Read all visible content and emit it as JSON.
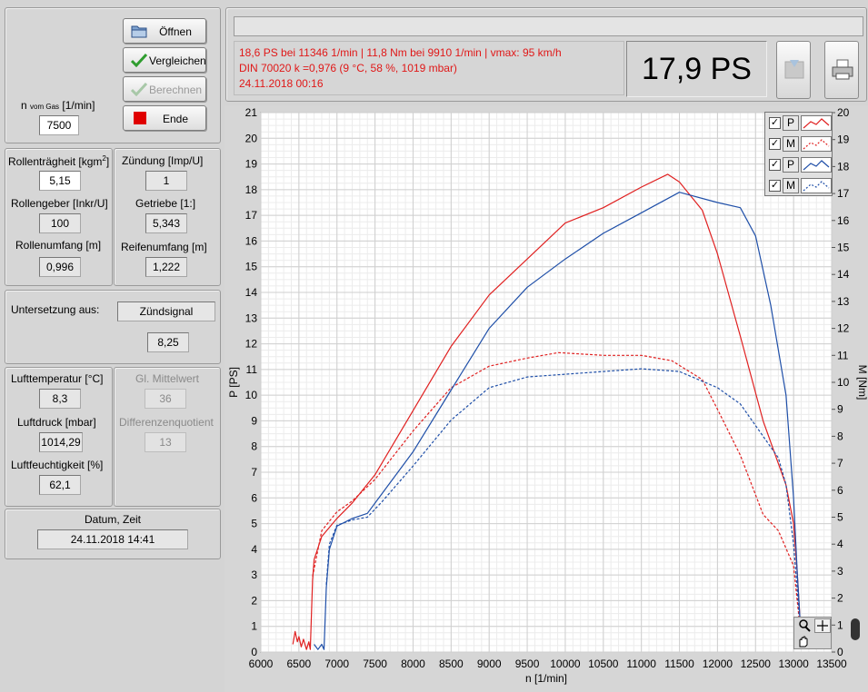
{
  "buttons": {
    "open": "Öffnen",
    "compare": "Vergleichen",
    "calculate": "Berechnen",
    "end": "Ende"
  },
  "rpm_from_gas": {
    "label_prefix": "n",
    "label_sub": "vom Gas",
    "label_suffix": "[1/min]",
    "value": "7500"
  },
  "params": {
    "roller_inertia_label": "Rollenträgheit [kgm",
    "roller_inertia_sup": "2",
    "roller_inertia_value": "5,15",
    "roller_encoder_label": "Rollengeber [Inkr/U]",
    "roller_encoder_value": "100",
    "roller_circumference_label": "Rollenumfang [m]",
    "roller_circumference_value": "0,996",
    "ignition_label": "Zündung [Imp/U]",
    "ignition_value": "1",
    "gearbox_label": "Getriebe [1:]",
    "gearbox_value": "5,343",
    "tire_circumference_label": "Reifenumfang [m]",
    "tire_circumference_value": "1,222"
  },
  "reduction": {
    "label": "Untersetzung aus:",
    "source": "Zündsignal",
    "value": "8,25"
  },
  "environment": {
    "air_temp_label": "Lufttemperatur [°C]",
    "air_temp_value": "8,3",
    "air_pressure_label": "Luftdruck [mbar]",
    "air_pressure_value": "1014,29",
    "humidity_label": "Luftfeuchtigkeit [%]",
    "humidity_value": "62,1",
    "moving_avg_label": "Gl. Mittelwert",
    "moving_avg_value": "36",
    "diff_quotient_label": "Differenzenquotient",
    "diff_quotient_value": "13"
  },
  "datetime": {
    "label": "Datum, Zeit",
    "value": "24.11.2018 14:41"
  },
  "results": {
    "line1": "18,6 PS bei 11346 1/min   |   11,8 Nm bei 9910 1/min   |   vmax: 95 km/h",
    "line2": "DIN 70020 k =0,976 (9 °C, 58 %, 1019 mbar)",
    "line3": "24.11.2018 00:16",
    "big_value": "17,9 PS",
    "text_color": "#e01818"
  },
  "legend": [
    {
      "checked": "✓",
      "letter": "P",
      "color": "#e02020",
      "dashed": false
    },
    {
      "checked": "✓",
      "letter": "M",
      "color": "#e02020",
      "dashed": true
    },
    {
      "checked": "✓",
      "letter": "P",
      "color": "#1f4fa8",
      "dashed": false
    },
    {
      "checked": "✓",
      "letter": "M",
      "color": "#1f4fa8",
      "dashed": true
    }
  ],
  "icons": {
    "open": "folder-icon",
    "compare": "checkmark-icon",
    "calculate": "checkmark-icon",
    "end": "stop-square-icon",
    "save": "save-disk-icon",
    "print": "printer-icon",
    "zoom": "zoom-icon",
    "pan": "hand-icon",
    "cursor": "crosshair-icon"
  },
  "chart_data": {
    "type": "line",
    "xlabel": "n [1/min]",
    "ylabel": "P [PS]",
    "y2label": "M [Nm]",
    "xlim": [
      6000,
      13500
    ],
    "ylim": [
      0,
      21
    ],
    "y2lim": [
      0,
      20
    ],
    "xticks": [
      6000,
      6500,
      7000,
      7500,
      8000,
      8500,
      9000,
      9500,
      10000,
      10500,
      11000,
      11500,
      12000,
      12500,
      13000,
      13500
    ],
    "yticks": [
      0,
      1,
      2,
      3,
      4,
      5,
      6,
      7,
      8,
      9,
      10,
      11,
      12,
      13,
      14,
      15,
      16,
      17,
      18,
      19,
      20,
      21
    ],
    "y2ticks": [
      0,
      1,
      2,
      3,
      4,
      5,
      6,
      7,
      8,
      9,
      10,
      11,
      12,
      13,
      14,
      15,
      16,
      17,
      18,
      19,
      20
    ],
    "grid": true,
    "legend_position": "top-right",
    "series": [
      {
        "axis": "P",
        "color": "#e02020",
        "dashed": false,
        "points": [
          [
            6420,
            0.3
          ],
          [
            6450,
            0.8
          ],
          [
            6480,
            0.4
          ],
          [
            6500,
            0.6
          ],
          [
            6530,
            0.2
          ],
          [
            6560,
            0.5
          ],
          [
            6600,
            0.1
          ],
          [
            6630,
            0.4
          ],
          [
            6650,
            0.1
          ],
          [
            6680,
            2.8
          ],
          [
            6700,
            3.6
          ],
          [
            6800,
            4.5
          ],
          [
            7000,
            5.2
          ],
          [
            7200,
            5.8
          ],
          [
            7500,
            6.9
          ],
          [
            8000,
            9.4
          ],
          [
            8500,
            11.9
          ],
          [
            9000,
            13.9
          ],
          [
            9500,
            15.3
          ],
          [
            10000,
            16.7
          ],
          [
            10500,
            17.3
          ],
          [
            11000,
            18.1
          ],
          [
            11346,
            18.6
          ],
          [
            11500,
            18.3
          ],
          [
            11800,
            17.2
          ],
          [
            12000,
            15.5
          ],
          [
            12300,
            12.3
          ],
          [
            12600,
            9.0
          ],
          [
            12900,
            6.5
          ],
          [
            13000,
            5.0
          ],
          [
            13050,
            3.0
          ],
          [
            13100,
            0.5
          ]
        ]
      },
      {
        "axis": "M",
        "color": "#e02020",
        "dashed": true,
        "points": [
          [
            6680,
            2.8
          ],
          [
            6800,
            4.5
          ],
          [
            7000,
            5.2
          ],
          [
            7200,
            5.6
          ],
          [
            7500,
            6.4
          ],
          [
            8000,
            8.2
          ],
          [
            8500,
            9.8
          ],
          [
            9000,
            10.6
          ],
          [
            9500,
            10.9
          ],
          [
            9910,
            11.1
          ],
          [
            10500,
            11.0
          ],
          [
            11000,
            11.0
          ],
          [
            11400,
            10.8
          ],
          [
            11800,
            10.1
          ],
          [
            12000,
            9.0
          ],
          [
            12300,
            7.3
          ],
          [
            12600,
            5.1
          ],
          [
            12800,
            4.5
          ],
          [
            13000,
            3.2
          ],
          [
            13100,
            0.5
          ]
        ]
      },
      {
        "axis": "P",
        "color": "#1f4fa8",
        "dashed": false,
        "points": [
          [
            6700,
            0.3
          ],
          [
            6750,
            0.1
          ],
          [
            6800,
            0.3
          ],
          [
            6830,
            0.1
          ],
          [
            6860,
            2.5
          ],
          [
            6900,
            4.0
          ],
          [
            7000,
            4.9
          ],
          [
            7200,
            5.2
          ],
          [
            7400,
            5.4
          ],
          [
            7600,
            6.2
          ],
          [
            8000,
            7.8
          ],
          [
            8500,
            10.2
          ],
          [
            9000,
            12.6
          ],
          [
            9500,
            14.2
          ],
          [
            10000,
            15.3
          ],
          [
            10500,
            16.3
          ],
          [
            11000,
            17.1
          ],
          [
            11500,
            17.9
          ],
          [
            12000,
            17.5
          ],
          [
            12300,
            17.3
          ],
          [
            12500,
            16.2
          ],
          [
            12700,
            13.5
          ],
          [
            12900,
            10.0
          ],
          [
            13000,
            6.0
          ],
          [
            13050,
            3.0
          ],
          [
            13100,
            0.5
          ]
        ]
      },
      {
        "axis": "M",
        "color": "#1f4fa8",
        "dashed": true,
        "points": [
          [
            6860,
            2.5
          ],
          [
            6900,
            4.0
          ],
          [
            7000,
            4.7
          ],
          [
            7200,
            4.9
          ],
          [
            7400,
            5.0
          ],
          [
            7600,
            5.6
          ],
          [
            8000,
            6.9
          ],
          [
            8500,
            8.6
          ],
          [
            9000,
            9.8
          ],
          [
            9500,
            10.2
          ],
          [
            10000,
            10.3
          ],
          [
            10500,
            10.4
          ],
          [
            11000,
            10.5
          ],
          [
            11500,
            10.4
          ],
          [
            12000,
            9.8
          ],
          [
            12300,
            9.2
          ],
          [
            12600,
            8.0
          ],
          [
            12800,
            7.2
          ],
          [
            12900,
            6.2
          ],
          [
            13000,
            4.0
          ],
          [
            13100,
            0.5
          ]
        ]
      }
    ]
  }
}
